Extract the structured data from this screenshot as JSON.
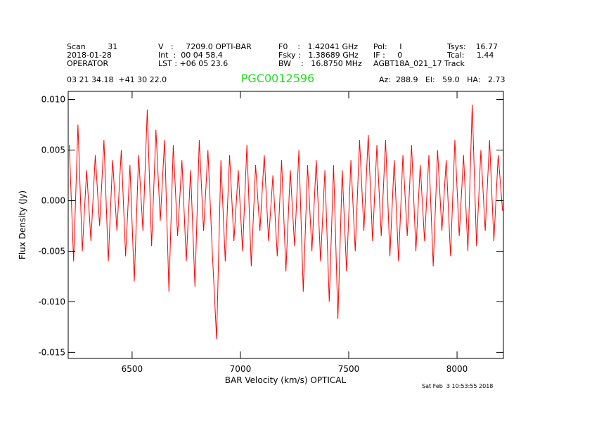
{
  "chart_data": {
    "type": "line",
    "title": "PGC0012596",
    "header": {
      "col1": [
        "Scan         31",
        "2018-01-28",
        "OPERATOR"
      ],
      "col2": [
        "V   :     7209.0 OPTI-BAR",
        "Int  :  00 04 58.4",
        "LST : +06 05 23.6"
      ],
      "col3": [
        "F0    :   1.42041 GHz",
        "Fsky :   1.38689 GHz",
        "BW    :   16.8750 MHz"
      ],
      "col4": [
        "Pol:     I",
        "IF :     0",
        "AGBT18A_021_17 Track"
      ],
      "col5": [
        "Tsys:    16.77",
        "Tcal:     1.44"
      ],
      "coords": "03 21 34.18  +41 30 22.0",
      "pointing": "Az:  288.9   El:   59.0   HA:   2.73"
    },
    "footer": "Sat Feb  3 10:53:55 2018",
    "xlabel": "BAR Velocity (km/s) OPTICAL",
    "ylabel": "Flux Density (Jy)",
    "xlim": [
      6205,
      8214
    ],
    "ylim": [
      -0.0156,
      0.0108
    ],
    "xticks": [
      6500,
      7000,
      7500,
      8000
    ],
    "yticks": [
      {
        "value": 0.01,
        "label": "0.010"
      },
      {
        "value": 0.005,
        "label": "0.005"
      },
      {
        "value": 0,
        "label": "0.000"
      },
      {
        "value": -0.005,
        "label": "-0.005"
      },
      {
        "value": -0.01,
        "label": "-0.010"
      },
      {
        "value": -0.015,
        "label": "-0.015"
      }
    ],
    "x": [
      6210,
      6230,
      6250,
      6270,
      6290,
      6310,
      6330,
      6350,
      6370,
      6390,
      6410,
      6430,
      6450,
      6470,
      6490,
      6510,
      6530,
      6550,
      6570,
      6590,
      6610,
      6630,
      6650,
      6670,
      6690,
      6710,
      6730,
      6750,
      6770,
      6790,
      6810,
      6830,
      6850,
      6870,
      6890,
      6910,
      6930,
      6950,
      6970,
      6990,
      7010,
      7030,
      7050,
      7070,
      7090,
      7110,
      7130,
      7150,
      7170,
      7190,
      7210,
      7230,
      7250,
      7270,
      7290,
      7310,
      7330,
      7350,
      7370,
      7390,
      7410,
      7430,
      7450,
      7470,
      7490,
      7510,
      7530,
      7550,
      7570,
      7590,
      7610,
      7630,
      7650,
      7670,
      7690,
      7710,
      7730,
      7750,
      7770,
      7790,
      7810,
      7830,
      7850,
      7870,
      7890,
      7910,
      7930,
      7950,
      7970,
      7990,
      8010,
      8030,
      8050,
      8070,
      8090,
      8110,
      8130,
      8150,
      8170,
      8190,
      8210
    ],
    "series": [
      {
        "color": "#ff0000",
        "values": [
          0.0055,
          -0.006,
          0.0075,
          -0.005,
          0.003,
          -0.004,
          0.0045,
          -0.0025,
          0.006,
          -0.006,
          0.004,
          -0.003,
          0.005,
          -0.0055,
          0.0035,
          -0.008,
          0.0045,
          -0.003,
          0.009,
          -0.0045,
          0.007,
          -0.002,
          0.006,
          -0.009,
          0.0055,
          -0.0035,
          0.004,
          -0.006,
          0.003,
          -0.0085,
          0.006,
          -0.003,
          0.005,
          -0.005,
          -0.0137,
          0.004,
          -0.006,
          0.0045,
          -0.004,
          0.003,
          -0.005,
          0.0055,
          -0.0065,
          0.0035,
          -0.003,
          0.0045,
          -0.004,
          0.0025,
          -0.0055,
          0.004,
          -0.007,
          0.003,
          -0.0045,
          0.005,
          -0.009,
          0.0035,
          -0.005,
          0.004,
          -0.006,
          0.003,
          -0.01,
          0.0035,
          -0.0117,
          0.003,
          -0.007,
          0.004,
          -0.005,
          0.006,
          -0.003,
          0.0065,
          -0.004,
          0.0055,
          -0.0035,
          0.006,
          -0.0055,
          0.004,
          -0.006,
          0.0045,
          -0.0035,
          0.0055,
          -0.005,
          0.0035,
          -0.004,
          0.0045,
          -0.0065,
          0.005,
          -0.003,
          0.004,
          -0.0055,
          0.006,
          -0.0035,
          0.0045,
          -0.005,
          0.0095,
          -0.0045,
          0.005,
          -0.003,
          0.006,
          -0.004,
          0.0045,
          -0.001
        ]
      }
    ]
  }
}
